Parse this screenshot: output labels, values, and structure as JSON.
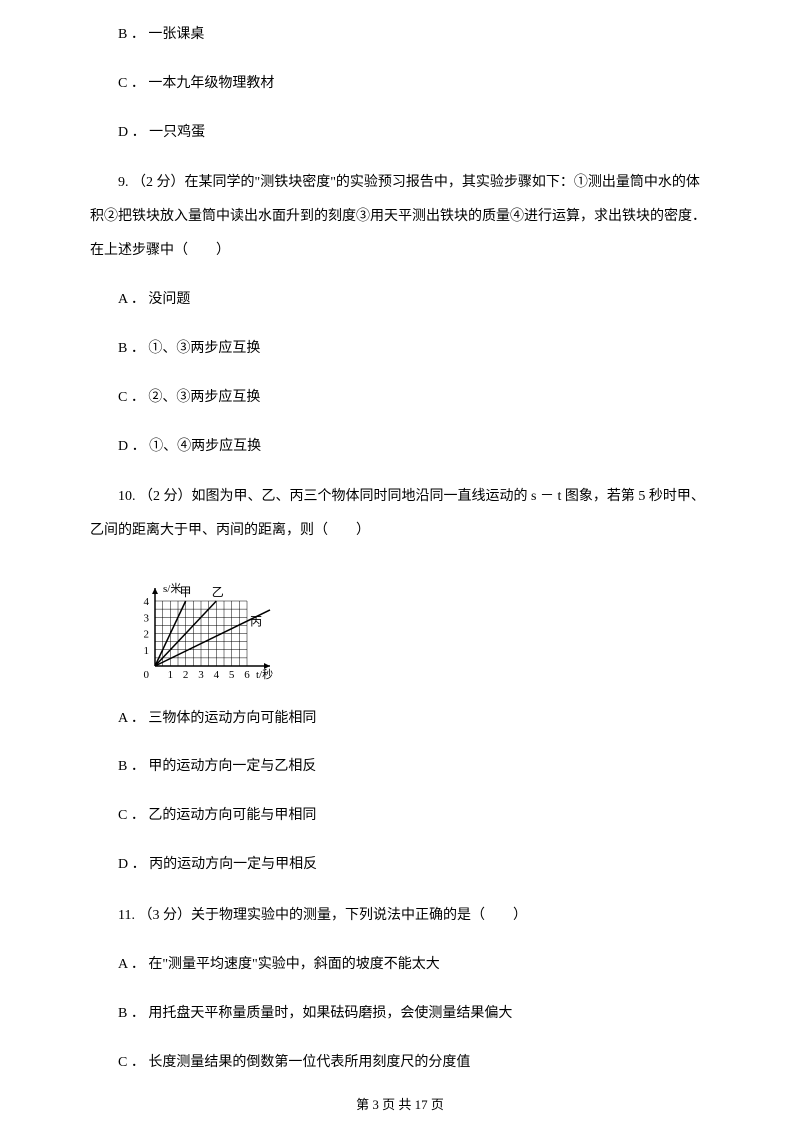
{
  "options_top": [
    {
      "label": "B",
      "text": "一张课桌"
    },
    {
      "label": "C",
      "text": "一本九年级物理教材"
    },
    {
      "label": "D",
      "text": "一只鸡蛋"
    }
  ],
  "q9": {
    "num": "9.",
    "points": "（2 分）",
    "text": "在某同学的\"测铁块密度\"的实验预习报告中，其实验步骤如下：①测出量筒中水的体积②把铁块放入量筒中读出水面升到的刻度③用天平测出铁块的质量④进行运算，求出铁块的密度．在上述步骤中（　　）",
    "options": [
      {
        "label": "A",
        "text": "没问题"
      },
      {
        "label": "B",
        "text": "①、③两步应互换"
      },
      {
        "label": "C",
        "text": "②、③两步应互换"
      },
      {
        "label": "D",
        "text": "①、④两步应互换"
      }
    ]
  },
  "q10": {
    "num": "10.",
    "points": " （2 分）",
    "text": "如图为甲、乙、丙三个物体同时同地沿同一直线运动的 s － t 图象，若第 5 秒时甲、乙间的距离大于甲、丙间的距离，则（　　）",
    "options": [
      {
        "label": "A",
        "text": "三物体的运动方向可能相同"
      },
      {
        "label": "B",
        "text": "甲的运动方向一定与乙相反"
      },
      {
        "label": "C",
        "text": "乙的运动方向可能与甲相同"
      },
      {
        "label": "D",
        "text": "丙的运动方向一定与甲相反"
      }
    ]
  },
  "q11": {
    "num": "11.",
    "points": "（3 分）",
    "text": "关于物理实验中的测量，下列说法中正确的是（　　）",
    "options": [
      {
        "label": "A",
        "text": "在\"测量平均速度\"实验中，斜面的坡度不能太大"
      },
      {
        "label": "B",
        "text": "用托盘天平称量质量时，如果砝码磨损，会使测量结果偏大"
      },
      {
        "label": "C",
        "text": "长度测量结果的倒数第一位代表所用刻度尺的分度值"
      }
    ]
  },
  "chart": {
    "type": "line",
    "width": 160,
    "height": 115,
    "y_axis_label": "s/米",
    "x_axis_label": "t/秒",
    "x_ticks": [
      0,
      1,
      2,
      3,
      4,
      5,
      6
    ],
    "y_ticks": [
      0,
      1,
      2,
      3,
      4
    ],
    "xlim": [
      0,
      7.5
    ],
    "ylim": [
      0,
      4.8
    ],
    "grid_color": "#000000",
    "background_color": "#ffffff",
    "axis_color": "#000000",
    "line_color": "#000000",
    "line_width": 1.5,
    "grid_width": 0.5,
    "font_size": 11,
    "series": {
      "甲": {
        "points": [
          [
            0,
            0
          ],
          [
            2,
            4
          ]
        ],
        "label_pos": [
          1.6,
          4.3
        ]
      },
      "乙": {
        "points": [
          [
            0,
            0
          ],
          [
            4,
            4
          ]
        ],
        "label_pos": [
          3.7,
          4.3
        ]
      },
      "丙": {
        "points": [
          [
            0,
            0
          ],
          [
            7.5,
            3.45
          ]
        ],
        "label_pos": [
          6.2,
          2.5
        ]
      }
    }
  },
  "footer": {
    "text": "第 3 页 共 17 页"
  }
}
